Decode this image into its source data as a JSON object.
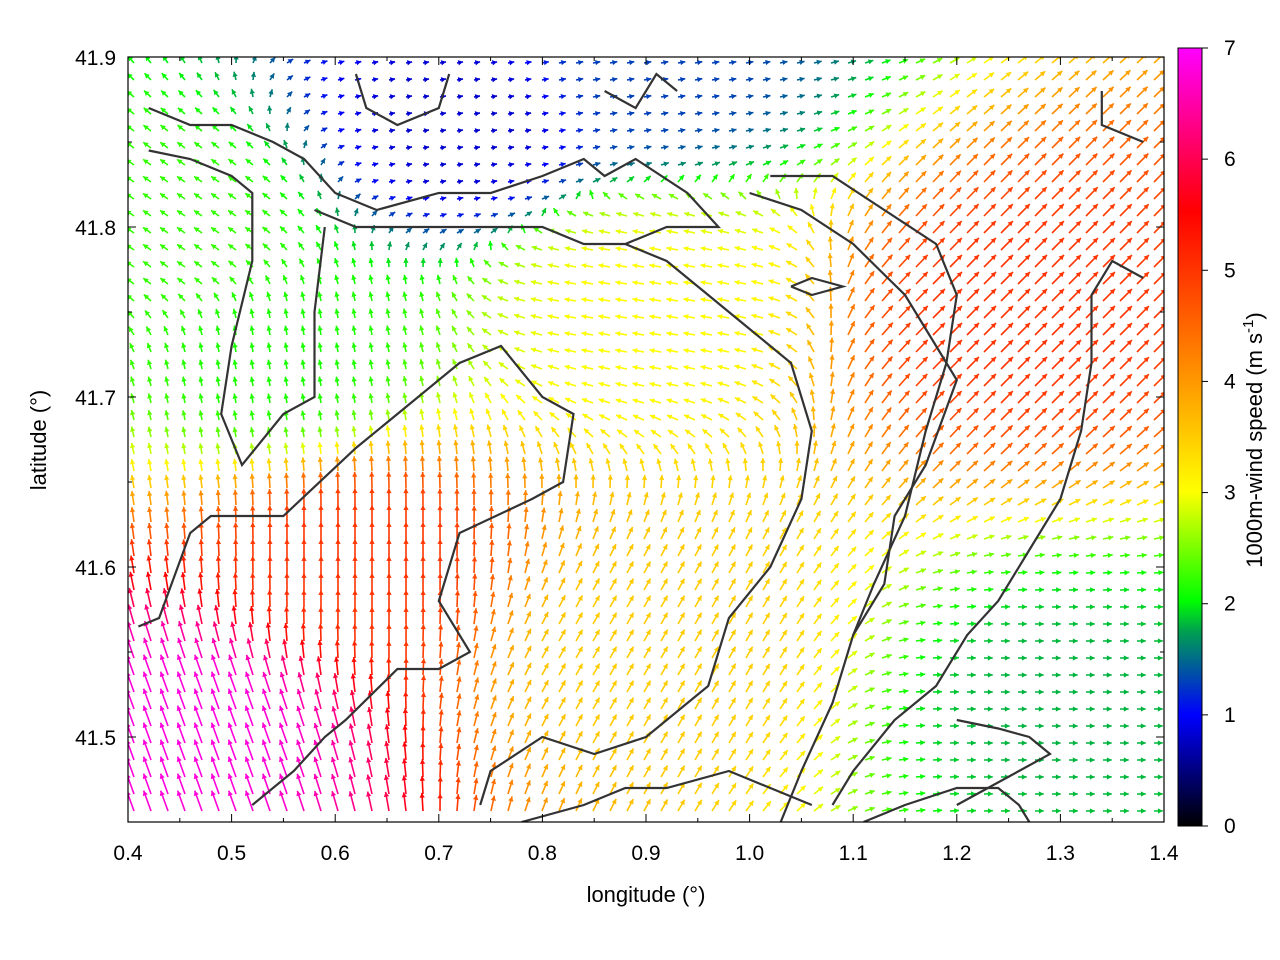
{
  "chart_data": {
    "type": "vector field",
    "xlabel": "longitude (°)",
    "ylabel": "latitude (°)",
    "xlim": [
      0.4,
      1.4
    ],
    "ylim": [
      41.45,
      41.9
    ],
    "xticks": [
      "0.4",
      "0.5",
      "0.6",
      "0.7",
      "0.8",
      "0.9",
      "1.0",
      "1.1",
      "1.2",
      "1.3",
      "1.4"
    ],
    "yticks": [
      "41.5",
      "41.6",
      "41.7",
      "41.8",
      "41.9"
    ],
    "colorbar": {
      "label_main": "1000m-wind speed (m s",
      "label_sup": "-1",
      "label_end": ")",
      "range": [
        0,
        7
      ],
      "ticks": [
        "0",
        "1",
        "2",
        "3",
        "4",
        "5",
        "6",
        "7"
      ],
      "colormap": [
        "#000000",
        "#0000ff",
        "#00a050",
        "#00ff00",
        "#ffff00",
        "#ff9900",
        "#ff0000",
        "#ff00ff"
      ]
    },
    "vector_regions_note_free": [
      {
        "lon": 0.46,
        "lat": 41.5,
        "speed": 6.8,
        "dir_deg": 110
      },
      {
        "lon": 0.62,
        "lat": 41.6,
        "speed": 5.0,
        "dir_deg": 90
      },
      {
        "lon": 0.55,
        "lat": 41.72,
        "speed": 2.1,
        "dir_deg": 100
      },
      {
        "lon": 0.45,
        "lat": 41.8,
        "speed": 2.2,
        "dir_deg": 145
      },
      {
        "lon": 0.72,
        "lat": 41.86,
        "speed": 0.8,
        "dir_deg": 10
      },
      {
        "lon": 0.9,
        "lat": 41.89,
        "speed": 1.3,
        "dir_deg": 10
      },
      {
        "lon": 0.9,
        "lat": 41.76,
        "speed": 3.0,
        "dir_deg": 170
      },
      {
        "lon": 1.25,
        "lat": 41.75,
        "speed": 5.0,
        "dir_deg": 45
      },
      {
        "lon": 1.3,
        "lat": 41.52,
        "speed": 1.8,
        "dir_deg": 0
      },
      {
        "lon": 0.9,
        "lat": 41.55,
        "speed": 3.5,
        "dir_deg": 60
      }
    ],
    "contours": [
      [
        [
          0.41,
          41.565
        ],
        [
          0.43,
          41.57
        ],
        [
          0.46,
          41.62
        ],
        [
          0.48,
          41.63
        ],
        [
          0.55,
          41.63
        ],
        [
          0.62,
          41.67
        ],
        [
          0.66,
          41.69
        ],
        [
          0.72,
          41.72
        ],
        [
          0.76,
          41.73
        ],
        [
          0.8,
          41.7
        ],
        [
          0.83,
          41.69
        ],
        [
          0.82,
          41.65
        ],
        [
          0.79,
          41.64
        ],
        [
          0.72,
          41.62
        ],
        [
          0.7,
          41.58
        ],
        [
          0.73,
          41.55
        ],
        [
          0.7,
          41.54
        ],
        [
          0.66,
          41.54
        ],
        [
          0.61,
          41.51
        ],
        [
          0.59,
          41.5
        ],
        [
          0.56,
          41.48
        ],
        [
          0.52,
          41.46
        ]
      ],
      [
        [
          0.42,
          41.87
        ],
        [
          0.46,
          41.86
        ],
        [
          0.5,
          41.86
        ],
        [
          0.54,
          41.85
        ],
        [
          0.57,
          41.84
        ],
        [
          0.6,
          41.82
        ],
        [
          0.64,
          41.81
        ],
        [
          0.7,
          41.82
        ],
        [
          0.75,
          41.82
        ],
        [
          0.8,
          41.83
        ],
        [
          0.84,
          41.84
        ],
        [
          0.86,
          41.83
        ],
        [
          0.89,
          41.84
        ],
        [
          0.94,
          41.82
        ],
        [
          0.97,
          41.8
        ],
        [
          0.92,
          41.8
        ],
        [
          0.88,
          41.79
        ],
        [
          0.84,
          41.79
        ],
        [
          0.8,
          41.8
        ],
        [
          0.74,
          41.8
        ],
        [
          0.68,
          41.8
        ],
        [
          0.62,
          41.8
        ],
        [
          0.58,
          41.81
        ]
      ],
      [
        [
          0.42,
          41.845
        ],
        [
          0.46,
          41.84
        ],
        [
          0.5,
          41.83
        ],
        [
          0.52,
          41.82
        ],
        [
          0.52,
          41.78
        ],
        [
          0.5,
          41.73
        ],
        [
          0.49,
          41.69
        ],
        [
          0.51,
          41.66
        ],
        [
          0.55,
          41.69
        ],
        [
          0.58,
          41.7
        ],
        [
          0.58,
          41.75
        ],
        [
          0.59,
          41.8
        ]
      ],
      [
        [
          0.62,
          41.89
        ],
        [
          0.63,
          41.87
        ],
        [
          0.66,
          41.86
        ],
        [
          0.7,
          41.87
        ],
        [
          0.71,
          41.89
        ]
      ],
      [
        [
          0.86,
          41.88
        ],
        [
          0.89,
          41.87
        ],
        [
          0.91,
          41.89
        ],
        [
          0.93,
          41.88
        ]
      ],
      [
        [
          0.88,
          41.79
        ],
        [
          0.92,
          41.78
        ],
        [
          0.96,
          41.76
        ],
        [
          1.0,
          41.74
        ],
        [
          1.04,
          41.72
        ],
        [
          1.06,
          41.68
        ],
        [
          1.05,
          41.64
        ],
        [
          1.02,
          41.6
        ],
        [
          0.98,
          41.57
        ],
        [
          0.96,
          41.53
        ],
        [
          0.9,
          41.5
        ],
        [
          0.85,
          41.49
        ],
        [
          0.8,
          41.5
        ],
        [
          0.75,
          41.48
        ],
        [
          0.74,
          41.46
        ]
      ],
      [
        [
          1.0,
          41.82
        ],
        [
          1.05,
          41.81
        ],
        [
          1.1,
          41.79
        ],
        [
          1.15,
          41.76
        ],
        [
          1.18,
          41.73
        ],
        [
          1.2,
          41.71
        ],
        [
          1.17,
          41.66
        ],
        [
          1.14,
          41.63
        ],
        [
          1.13,
          41.59
        ],
        [
          1.1,
          41.56
        ],
        [
          1.08,
          41.52
        ],
        [
          1.05,
          41.48
        ],
        [
          1.03,
          41.45
        ]
      ],
      [
        [
          1.02,
          41.83
        ],
        [
          1.08,
          41.83
        ],
        [
          1.13,
          41.81
        ],
        [
          1.18,
          41.79
        ],
        [
          1.2,
          41.76
        ],
        [
          1.19,
          41.72
        ],
        [
          1.17,
          41.68
        ],
        [
          1.15,
          41.63
        ],
        [
          1.12,
          41.59
        ],
        [
          1.1,
          41.56
        ]
      ],
      [
        [
          1.34,
          41.88
        ],
        [
          1.34,
          41.86
        ],
        [
          1.38,
          41.85
        ]
      ],
      [
        [
          1.38,
          41.77
        ],
        [
          1.35,
          41.78
        ],
        [
          1.33,
          41.76
        ],
        [
          1.33,
          41.72
        ],
        [
          1.32,
          41.68
        ],
        [
          1.3,
          41.64
        ],
        [
          1.27,
          41.61
        ],
        [
          1.24,
          41.58
        ],
        [
          1.21,
          41.56
        ],
        [
          1.18,
          41.53
        ],
        [
          1.14,
          41.51
        ],
        [
          1.1,
          41.48
        ],
        [
          1.08,
          41.46
        ]
      ],
      [
        [
          1.04,
          41.765
        ],
        [
          1.06,
          41.76
        ],
        [
          1.09,
          41.765
        ],
        [
          1.06,
          41.77
        ],
        [
          1.04,
          41.765
        ]
      ],
      [
        [
          1.2,
          41.51
        ],
        [
          1.24,
          41.505
        ],
        [
          1.27,
          41.5
        ],
        [
          1.29,
          41.49
        ],
        [
          1.26,
          41.48
        ],
        [
          1.23,
          41.47
        ],
        [
          1.2,
          41.46
        ]
      ],
      [
        [
          0.78,
          41.45
        ],
        [
          0.84,
          41.46
        ],
        [
          0.88,
          41.47
        ],
        [
          0.92,
          41.47
        ],
        [
          0.98,
          41.48
        ],
        [
          1.02,
          41.47
        ],
        [
          1.06,
          41.46
        ]
      ],
      [
        [
          1.11,
          41.45
        ],
        [
          1.15,
          41.46
        ],
        [
          1.2,
          41.47
        ],
        [
          1.24,
          41.47
        ],
        [
          1.26,
          41.46
        ],
        [
          1.27,
          41.45
        ]
      ]
    ]
  }
}
